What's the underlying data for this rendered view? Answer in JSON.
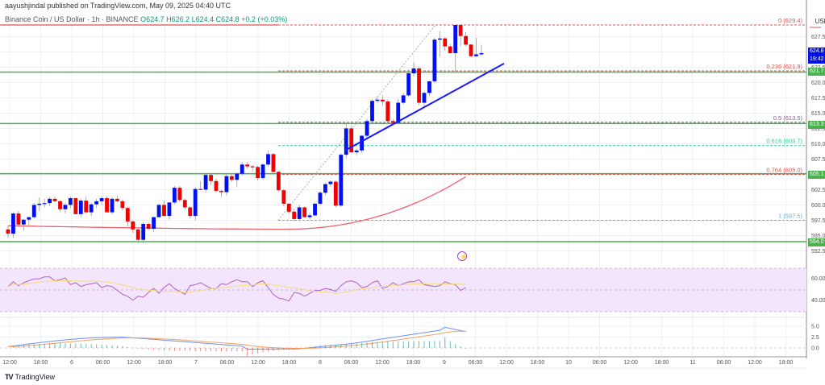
{
  "header": {
    "published": "aayushjindal published on TradingView.com, May 09, 2025 04:40 UTC",
    "symbol": "Binance Coin / US Dollar · 1h · BINANCE",
    "ohlc": "O624.7 H626.2 L624.4 C624.8 +0.2 (+0.03%)"
  },
  "currency": "USD",
  "footer": {
    "brand": "TradingView"
  },
  "price_tags": {
    "last": "624.8",
    "countdown": "19:42",
    "s1": "621.7",
    "s2": "613.3",
    "s3": "605.1",
    "s4": "594.0"
  },
  "colors": {
    "up": "#0010f0",
    "down": "#f00000",
    "ma": "#f0606a",
    "support": "#4caf50",
    "trendline": "#1a1aff",
    "rsi": "#b05fc8",
    "rsi_ma": "#f5d97a",
    "macd": "#6f8ff0",
    "signal": "#f5a060"
  },
  "chart_data": {
    "type": "candlestick",
    "title": "Binance Coin / US Dollar · 1h · BINANCE",
    "xlabel": "",
    "ylabel": "USD",
    "ylim": [
      591.5,
      630.5
    ],
    "y_ticks": [
      592.5,
      595.0,
      597.5,
      600.0,
      602.5,
      605.0,
      607.5,
      610.0,
      612.5,
      615.0,
      617.5,
      620.0,
      622.5,
      625.0,
      627.5
    ],
    "x_ticks": [
      "12:00",
      "18:00",
      "6",
      "06:00",
      "12:00",
      "18:00",
      "7",
      "06:00",
      "12:00",
      "18:00",
      "8",
      "06:00",
      "12:00",
      "18:00",
      "9",
      "06:00",
      "12:00",
      "18:00",
      "10",
      "06:00",
      "12:00",
      "18:00",
      "11",
      "06:00",
      "12:00",
      "18:00"
    ],
    "last_price": 624.8,
    "fibonacci": [
      {
        "level": "0",
        "price": 629.4,
        "color": "#e05050"
      },
      {
        "level": "0.236",
        "price": 621.9,
        "color": "#e05050"
      },
      {
        "level": "0.5",
        "price": 613.5,
        "color": "#8a5a8a"
      },
      {
        "level": "0.618",
        "price": 609.7,
        "color": "#2ecfa0"
      },
      {
        "level": "0.764",
        "price": 605.0,
        "color": "#e05050"
      },
      {
        "level": "1",
        "price": 597.5,
        "color": "#5fb0e0"
      }
    ],
    "horizontal_levels": [
      621.7,
      613.3,
      605.1,
      594.0
    ],
    "trendline": {
      "from": [
        428,
        608.9
      ],
      "to": [
        625,
        623.1
      ]
    },
    "candles": [
      [
        596.0,
        596.6,
        594.6,
        595.3
      ],
      [
        595.3,
        598.8,
        594.6,
        598.6
      ],
      [
        598.6,
        599.0,
        596.4,
        596.8
      ],
      [
        596.8,
        597.5,
        595.8,
        597.6
      ],
      [
        597.6,
        598.0,
        596.7,
        598.0
      ],
      [
        598.0,
        600.3,
        597.8,
        600.0
      ],
      [
        600.0,
        601.2,
        599.0,
        600.2
      ],
      [
        600.2,
        601.0,
        599.6,
        600.3
      ],
      [
        600.3,
        601.3,
        599.8,
        601.0
      ],
      [
        601.0,
        601.3,
        600.4,
        600.6
      ],
      [
        600.6,
        600.8,
        598.9,
        599.3
      ],
      [
        599.3,
        600.3,
        598.6,
        600.0
      ],
      [
        600.0,
        601.3,
        599.5,
        601.1
      ],
      [
        601.1,
        601.2,
        598.5,
        598.5
      ],
      [
        598.5,
        601.0,
        598.0,
        600.7
      ],
      [
        600.7,
        601.4,
        598.6,
        598.8
      ],
      [
        598.8,
        600.3,
        598.2,
        600.1
      ],
      [
        600.1,
        601.0,
        599.5,
        600.6
      ],
      [
        600.6,
        601.4,
        600.0,
        601.1
      ],
      [
        601.1,
        601.4,
        598.8,
        598.8
      ],
      [
        598.8,
        601.3,
        598.5,
        601.0
      ],
      [
        601.0,
        601.5,
        600.4,
        600.6
      ],
      [
        600.6,
        600.9,
        599.1,
        599.5
      ],
      [
        599.5,
        599.7,
        596.5,
        597.3
      ],
      [
        597.3,
        597.5,
        595.4,
        596.0
      ],
      [
        596.0,
        596.2,
        593.8,
        594.3
      ],
      [
        594.3,
        597.2,
        593.7,
        596.9
      ],
      [
        596.9,
        597.2,
        595.8,
        596.1
      ],
      [
        596.1,
        598.1,
        595.6,
        598.0
      ],
      [
        598.0,
        600.2,
        597.9,
        600.0
      ],
      [
        600.0,
        600.7,
        598.1,
        598.2
      ],
      [
        598.2,
        600.5,
        597.6,
        600.4
      ],
      [
        600.4,
        603.1,
        600.1,
        602.8
      ],
      [
        602.8,
        603.1,
        600.5,
        600.8
      ],
      [
        600.8,
        601.0,
        599.3,
        599.6
      ],
      [
        599.6,
        599.8,
        597.8,
        598.2
      ],
      [
        598.2,
        602.9,
        597.5,
        602.6
      ],
      [
        602.6,
        603.9,
        602.4,
        602.5
      ],
      [
        602.5,
        605.2,
        602.0,
        604.9
      ],
      [
        604.9,
        605.2,
        603.2,
        603.9
      ],
      [
        603.9,
        604.3,
        602.0,
        602.3
      ],
      [
        602.3,
        602.5,
        601.3,
        602.1
      ],
      [
        602.1,
        605.2,
        601.6,
        604.7
      ],
      [
        604.7,
        605.2,
        603.8,
        604.1
      ],
      [
        604.1,
        605.3,
        602.9,
        605.1
      ],
      [
        605.1,
        607.0,
        604.8,
        606.6
      ],
      [
        606.6,
        607.0,
        605.9,
        606.3
      ],
      [
        606.3,
        606.5,
        605.5,
        606.2
      ],
      [
        606.2,
        606.4,
        604.0,
        604.4
      ],
      [
        604.4,
        606.8,
        604.1,
        606.6
      ],
      [
        606.6,
        608.9,
        606.3,
        608.3
      ],
      [
        608.3,
        608.5,
        605.3,
        605.4
      ],
      [
        605.4,
        605.6,
        602.1,
        602.4
      ],
      [
        602.4,
        602.6,
        599.8,
        600.2
      ],
      [
        600.2,
        600.3,
        598.6,
        598.9
      ],
      [
        598.9,
        599.4,
        597.4,
        597.7
      ],
      [
        597.7,
        600.0,
        597.4,
        599.6
      ],
      [
        599.6,
        599.8,
        597.9,
        598.0
      ],
      [
        598.0,
        598.7,
        597.6,
        598.3
      ],
      [
        598.3,
        600.4,
        598.1,
        600.2
      ],
      [
        600.2,
        602.3,
        599.9,
        602.0
      ],
      [
        602.0,
        603.6,
        601.6,
        603.4
      ],
      [
        603.4,
        604.0,
        603.0,
        603.8
      ],
      [
        603.8,
        604.0,
        599.6,
        599.9
      ],
      [
        599.9,
        608.4,
        599.7,
        608.2
      ],
      [
        608.2,
        613.3,
        607.6,
        612.5
      ],
      [
        612.5,
        612.9,
        608.6,
        608.6
      ],
      [
        608.6,
        609.2,
        608.1,
        608.9
      ],
      [
        608.9,
        611.4,
        608.5,
        611.3
      ],
      [
        611.3,
        614.1,
        611.0,
        613.7
      ],
      [
        613.7,
        617.2,
        613.2,
        617.0
      ],
      [
        617.0,
        617.6,
        616.7,
        617.2
      ],
      [
        617.2,
        617.9,
        616.2,
        616.9
      ],
      [
        616.9,
        617.2,
        613.2,
        613.7
      ],
      [
        613.7,
        614.0,
        613.4,
        613.4
      ],
      [
        613.4,
        617.3,
        613.2,
        616.7
      ],
      [
        616.7,
        618.3,
        616.4,
        617.9
      ],
      [
        617.9,
        622.1,
        617.7,
        621.5
      ],
      [
        621.5,
        623.3,
        621.0,
        622.3
      ],
      [
        622.3,
        622.6,
        616.3,
        616.7
      ],
      [
        616.7,
        618.5,
        616.0,
        618.3
      ],
      [
        618.3,
        620.1,
        617.8,
        620.2
      ],
      [
        620.2,
        627.3,
        619.9,
        627.0
      ],
      [
        627.0,
        628.4,
        624.2,
        627.2
      ],
      [
        627.2,
        627.4,
        625.2,
        625.9
      ],
      [
        625.9,
        626.3,
        624.7,
        624.8
      ],
      [
        624.8,
        629.4,
        621.7,
        629.4
      ],
      [
        629.4,
        629.4,
        625.9,
        627.6
      ],
      [
        627.6,
        628.2,
        625.9,
        626.2
      ],
      [
        626.2,
        626.2,
        624.1,
        624.3
      ],
      [
        624.3,
        627.3,
        624.1,
        624.6
      ],
      [
        624.6,
        626.2,
        624.4,
        624.8
      ]
    ],
    "indicators": {
      "rsi": {
        "levels": [
          70,
          50,
          30
        ],
        "ticks": [
          60.0,
          40.0
        ]
      },
      "macd": {
        "ticks": [
          5.0,
          2.5,
          0.0
        ]
      }
    }
  }
}
